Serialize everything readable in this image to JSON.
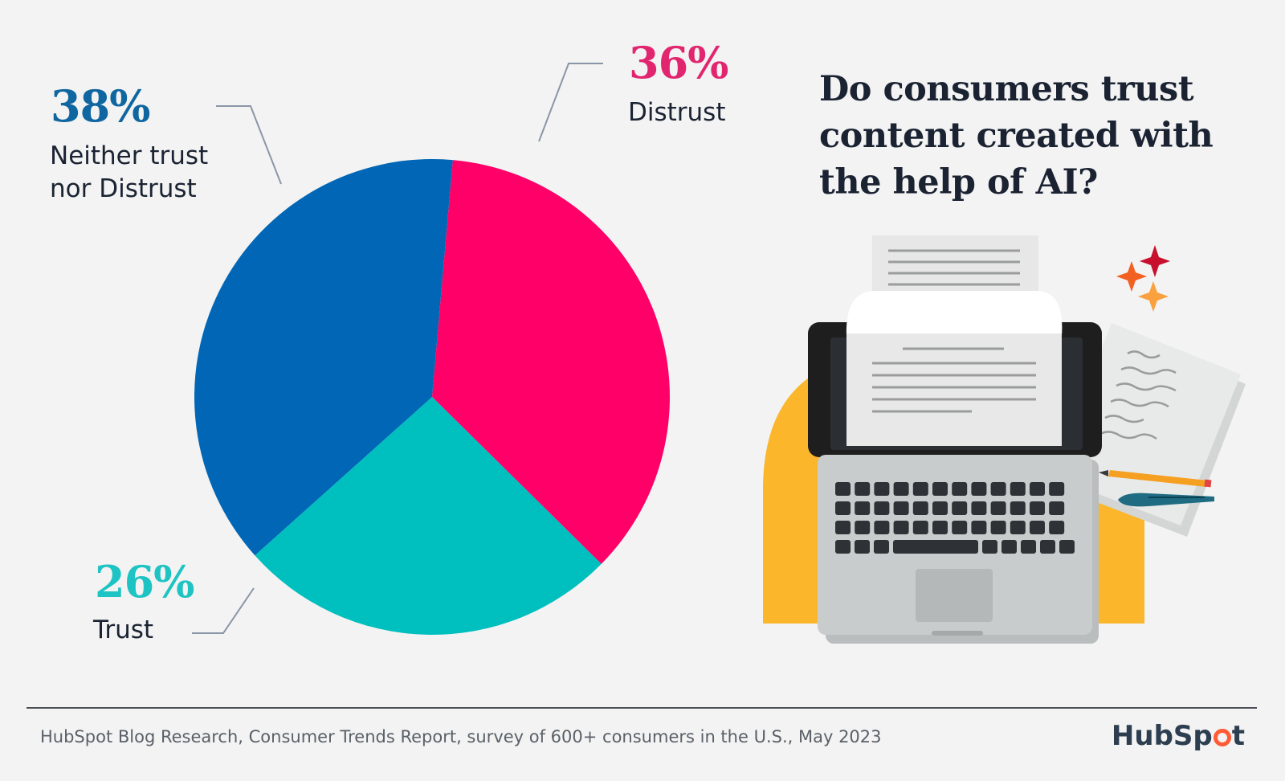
{
  "chart_data": {
    "type": "pie",
    "title": "Do consumers trust content created with the help of AI?",
    "slices": [
      {
        "label_lines": [
          "Distrust"
        ],
        "value": 36,
        "display": "36%",
        "color": "#ff0069",
        "label_color": "#e1266f"
      },
      {
        "label_lines": [
          "Trust"
        ],
        "value": 26,
        "display": "26%",
        "color": "#00bfbf",
        "label_color": "#1ec3c3"
      },
      {
        "label_lines": [
          "Neither trust",
          "nor Distrust"
        ],
        "value": 38,
        "display": "38%",
        "color": "#0066b5",
        "label_color": "#0f66a0"
      }
    ]
  },
  "headline_lines": [
    "Do consumers trust",
    "content created with",
    "the help of AI?"
  ],
  "footer": {
    "source": "HubSpot Blog Research, Consumer Trends Report, survey of 600+ consumers in the U.S., May 2023",
    "brand_before": "HubSp",
    "brand_after": "t"
  },
  "illustration": {
    "icons": [
      "laptop-icon",
      "paper-sheet-icon",
      "notes-icon",
      "pencil-icon",
      "pen-icon",
      "sparkle-icon"
    ],
    "colors": {
      "backdrop": "#fbb62b",
      "laptop": "#c8cccc",
      "bezel": "#1e1e1e",
      "paper": "#e6e7e6"
    }
  }
}
